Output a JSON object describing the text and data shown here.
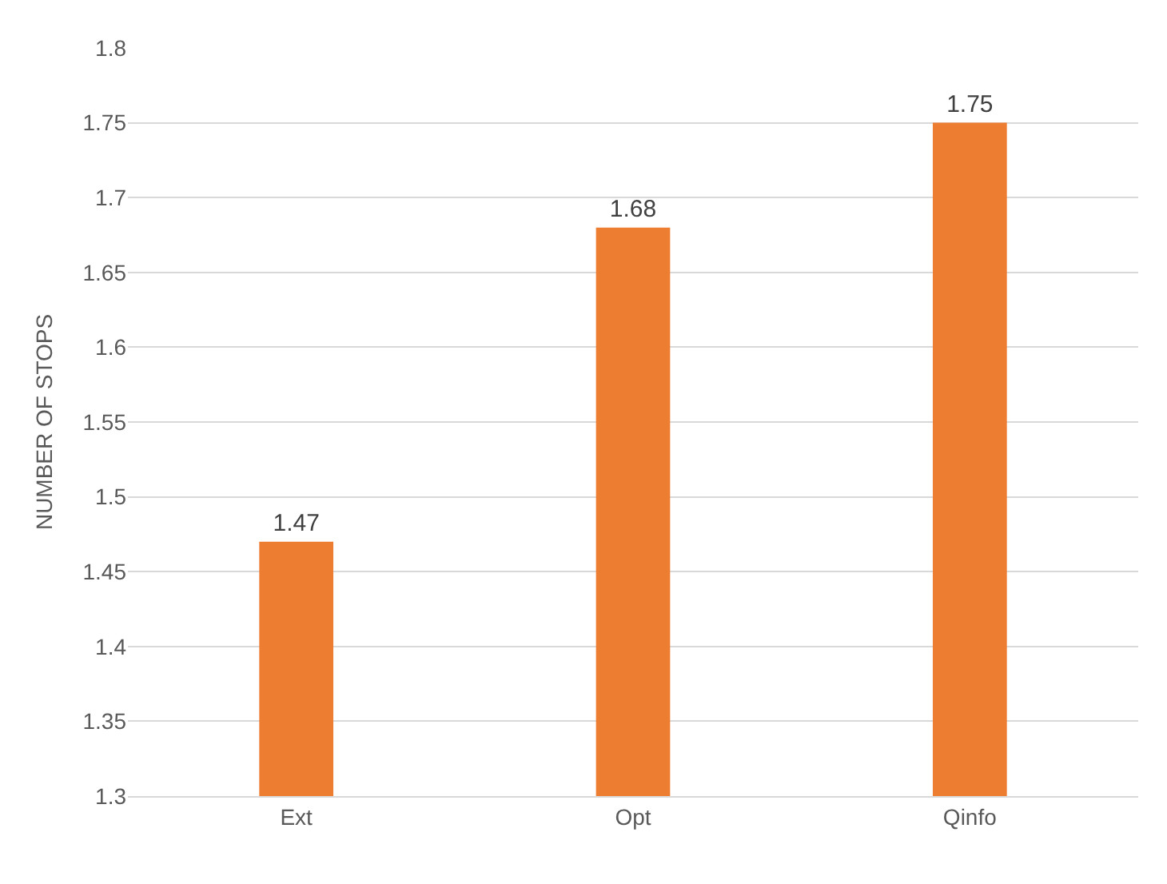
{
  "chart_data": {
    "type": "bar",
    "ylabel": "NUMBER OF STOPS",
    "categories": [
      "Ext",
      "Opt",
      "Qinfo"
    ],
    "values": [
      1.47,
      1.68,
      1.75
    ],
    "color": "#ed7d31",
    "ylim": [
      1.3,
      1.8
    ],
    "yticks": [
      1.3,
      1.35,
      1.4,
      1.45,
      1.5,
      1.55,
      1.6,
      1.65,
      1.7,
      1.75,
      1.8
    ],
    "grid": "y",
    "data_labels": true
  }
}
